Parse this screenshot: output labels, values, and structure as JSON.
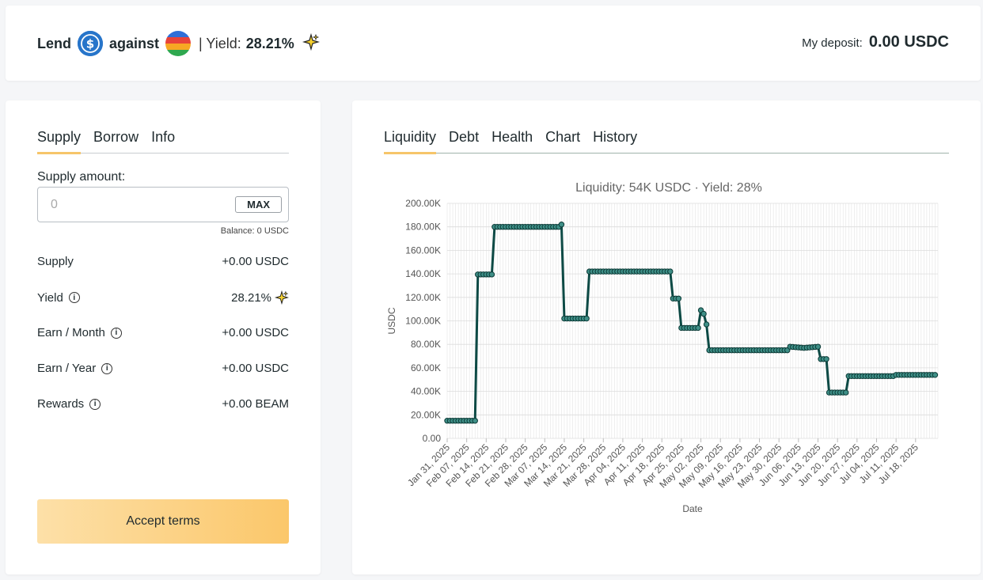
{
  "header": {
    "lend_label": "Lend",
    "against_label": "against",
    "yield_label": "| Yield:",
    "yield_value": "28.21%",
    "deposit_label": "My deposit:",
    "deposit_value": "0.00 USDC"
  },
  "left_panel": {
    "tabs": [
      "Supply",
      "Borrow",
      "Info"
    ],
    "supply_amount_label": "Supply amount:",
    "input_placeholder": "0",
    "max_label": "MAX",
    "balance": "Balance: 0 USDC",
    "rows": [
      {
        "label": "Supply",
        "value": "+0.00 USDC"
      },
      {
        "label": "Yield",
        "value": "28.21%"
      },
      {
        "label": "Earn / Month",
        "value": "+0.00 USDC"
      },
      {
        "label": "Earn / Year",
        "value": "+0.00 USDC"
      },
      {
        "label": "Rewards",
        "value": "+0.00 BEAM"
      }
    ],
    "accept_label": "Accept terms"
  },
  "right_panel": {
    "tabs": [
      "Liquidity",
      "Debt",
      "Health",
      "Chart",
      "History"
    ]
  },
  "colors": {
    "accent": "#f6c56a",
    "line": "#0d4a45",
    "usdc": "#2775ca"
  },
  "chart_data": {
    "type": "line",
    "title": "Liquidity: 54K USDC · Yield: 28%",
    "xlabel": "Date",
    "ylabel": "USDC",
    "ylim": [
      0,
      200000
    ],
    "yticks": [
      "0.00",
      "20.00K",
      "40.00K",
      "60.00K",
      "80.00K",
      "100.00K",
      "120.00K",
      "140.00K",
      "160.00K",
      "180.00K",
      "200.00K"
    ],
    "xticks": [
      "Jan 31, 2025",
      "Feb 07, 2025",
      "Feb 14, 2025",
      "Feb 21, 2025",
      "Feb 28, 2025",
      "Mar 07, 2025",
      "Mar 14, 2025",
      "Mar 21, 2025",
      "Mar 28, 2025",
      "Apr 04, 2025",
      "Apr 11, 2025",
      "Apr 18, 2025",
      "Apr 25, 2025",
      "May 02, 2025",
      "May 09, 2025",
      "May 16, 2025",
      "May 23, 2025",
      "May 30, 2025",
      "Jun 06, 2025",
      "Jun 13, 2025",
      "Jun 20, 2025",
      "Jun 27, 2025",
      "Jul 04, 2025",
      "Jul 11, 2025",
      "Jul 18, 2025"
    ],
    "grid": true,
    "series": [
      {
        "x": [
          "2025-01-31",
          "2025-02-10",
          "2025-02-11",
          "2025-02-16",
          "2025-02-17",
          "2025-03-12",
          "2025-03-13",
          "2025-03-14",
          "2025-03-22",
          "2025-03-23",
          "2025-04-21",
          "2025-04-22",
          "2025-04-24",
          "2025-04-25",
          "2025-05-01",
          "2025-05-02",
          "2025-05-03",
          "2025-05-04",
          "2025-05-05",
          "2025-05-06",
          "2025-06-02",
          "2025-06-03",
          "2025-06-08",
          "2025-06-13",
          "2025-06-14",
          "2025-06-16",
          "2025-06-17",
          "2025-06-23",
          "2025-06-24",
          "2025-07-10",
          "2025-07-11",
          "2025-07-25"
        ],
        "y": [
          15000,
          15000,
          139500,
          139500,
          180000,
          180000,
          182000,
          102000,
          102000,
          142000,
          142000,
          119000,
          119000,
          94000,
          94000,
          109000,
          106000,
          97000,
          75000,
          75000,
          75000,
          78000,
          77000,
          78000,
          67500,
          67500,
          39000,
          39000,
          53000,
          53000,
          54000,
          54000
        ]
      }
    ]
  }
}
